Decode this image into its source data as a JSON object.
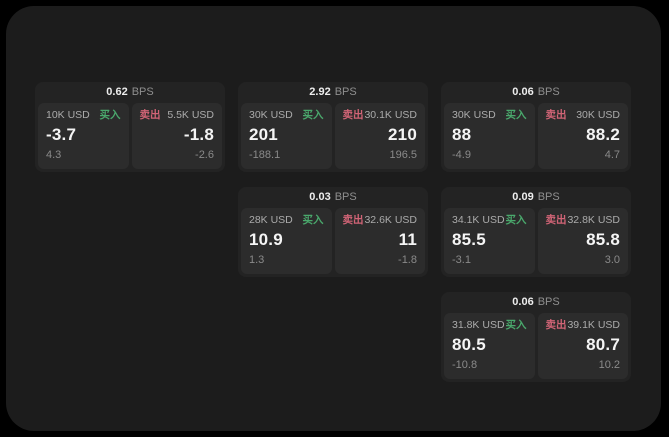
{
  "labels": {
    "bps": "BPS",
    "buy": "买入",
    "sell": "卖出"
  },
  "colors": {
    "page_bg": "#000000",
    "window_bg": "#1c1c1c",
    "card_bg": "#232323",
    "panel_bg": "#2c2c2c",
    "buy_accent": "#4aa86c",
    "sell_accent": "#d16476"
  },
  "cards": [
    {
      "bps": "0.62",
      "buy": {
        "amount": "10K USD",
        "value": "-3.7",
        "change": "4.3"
      },
      "sell": {
        "amount": "5.5K USD",
        "value": "-1.8",
        "change": "-2.6"
      }
    },
    {
      "bps": "2.92",
      "buy": {
        "amount": "30K USD",
        "value": "201",
        "change": "-188.1"
      },
      "sell": {
        "amount": "30.1K USD",
        "value": "210",
        "change": "196.5"
      }
    },
    {
      "bps": "0.06",
      "buy": {
        "amount": "30K USD",
        "value": "88",
        "change": "-4.9"
      },
      "sell": {
        "amount": "30K USD",
        "value": "88.2",
        "change": "4.7"
      }
    },
    {
      "bps": "0.03",
      "buy": {
        "amount": "28K USD",
        "value": "10.9",
        "change": "1.3"
      },
      "sell": {
        "amount": "32.6K USD",
        "value": "11",
        "change": "-1.8"
      }
    },
    {
      "bps": "0.09",
      "buy": {
        "amount": "34.1K USD",
        "value": "85.5",
        "change": "-3.1"
      },
      "sell": {
        "amount": "32.8K USD",
        "value": "85.8",
        "change": "3.0"
      }
    },
    {
      "bps": "0.06",
      "buy": {
        "amount": "31.8K USD",
        "value": "80.5",
        "change": "-10.8"
      },
      "sell": {
        "amount": "39.1K USD",
        "value": "80.7",
        "change": "10.2"
      }
    }
  ]
}
